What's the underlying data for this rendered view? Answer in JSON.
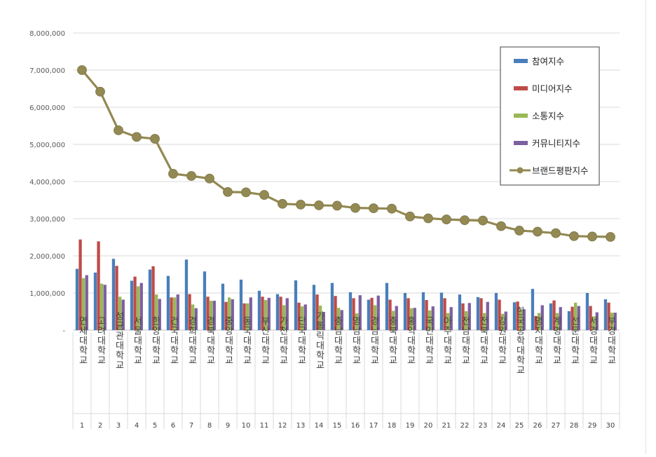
{
  "chart_data": {
    "type": "bar",
    "categories": [
      "연세대학교",
      "고려대학교",
      "성균관대학교",
      "서울대학교",
      "한양대학교",
      "건국대학교",
      "경희대학교",
      "경북대학교",
      "중앙대학교",
      "동국대학교",
      "부산대학교",
      "가천대학교",
      "단국대학교",
      "가톨릭대학교",
      "충남대학교",
      "영남대학교",
      "경남대학교",
      "충북대학교",
      "홍익대학교",
      "국민대학교",
      "아주대학교",
      "전남대학교",
      "전북대학교",
      "강원대학교",
      "한국공학대학교",
      "명지대학교",
      "계명대학교",
      "선문대학교",
      "서경대학교",
      "부경대학교"
    ],
    "ranks": [
      "1",
      "2",
      "3",
      "4",
      "5",
      "6",
      "7",
      "8",
      "9",
      "10",
      "11",
      "12",
      "13",
      "14",
      "15",
      "16",
      "17",
      "18",
      "19",
      "20",
      "21",
      "22",
      "23",
      "24",
      "25",
      "26",
      "27",
      "28",
      "29",
      "30"
    ],
    "ylim": [
      0,
      8000000
    ],
    "yticks": [
      {
        "value": 0,
        "label": "-"
      },
      {
        "value": 1000000,
        "label": "1,000,000"
      },
      {
        "value": 2000000,
        "label": "2,000,000"
      },
      {
        "value": 3000000,
        "label": "3,000,000"
      },
      {
        "value": 4000000,
        "label": "4,000,000"
      },
      {
        "value": 5000000,
        "label": "5,000,000"
      },
      {
        "value": 6000000,
        "label": "6,000,000"
      },
      {
        "value": 7000000,
        "label": "7,000,000"
      },
      {
        "value": 8000000,
        "label": "8,000,000"
      }
    ],
    "grid": true,
    "legend_position": "top-right",
    "series": [
      {
        "name": "참여지수",
        "type": "bar",
        "color": "#4a7ebb",
        "values": [
          1650000,
          1550000,
          1920000,
          1330000,
          1630000,
          1460000,
          1900000,
          1580000,
          1250000,
          1360000,
          1060000,
          970000,
          1340000,
          1220000,
          1270000,
          1020000,
          820000,
          1270000,
          1000000,
          1020000,
          1010000,
          960000,
          890000,
          1000000,
          750000,
          1110000,
          720000,
          510000,
          1000000,
          830000
        ]
      },
      {
        "name": "미디어지수",
        "type": "bar",
        "color": "#be4b48",
        "values": [
          2440000,
          2390000,
          1730000,
          1440000,
          1720000,
          880000,
          970000,
          900000,
          760000,
          720000,
          900000,
          900000,
          740000,
          960000,
          920000,
          860000,
          870000,
          820000,
          860000,
          810000,
          860000,
          720000,
          860000,
          820000,
          770000,
          380000,
          800000,
          630000,
          650000,
          740000
        ]
      },
      {
        "name": "소통지수",
        "type": "bar",
        "color": "#98b954",
        "values": [
          1400000,
          1250000,
          900000,
          1180000,
          960000,
          880000,
          690000,
          790000,
          880000,
          720000,
          810000,
          670000,
          640000,
          660000,
          600000,
          450000,
          670000,
          520000,
          590000,
          530000,
          460000,
          510000,
          460000,
          440000,
          550000,
          460000,
          460000,
          740000,
          370000,
          470000
        ]
      },
      {
        "name": "커뮤니티지수",
        "type": "bar",
        "color": "#7d60a0",
        "values": [
          1480000,
          1220000,
          820000,
          1270000,
          840000,
          960000,
          590000,
          790000,
          830000,
          880000,
          870000,
          860000,
          690000,
          490000,
          540000,
          940000,
          930000,
          650000,
          600000,
          640000,
          620000,
          730000,
          760000,
          500000,
          560000,
          670000,
          620000,
          650000,
          480000,
          470000
        ]
      },
      {
        "name": "브랜드평판지수",
        "type": "line",
        "color": "#938953",
        "values": [
          7000000,
          6420000,
          5380000,
          5200000,
          5150000,
          4210000,
          4150000,
          4080000,
          3720000,
          3710000,
          3640000,
          3400000,
          3380000,
          3360000,
          3350000,
          3290000,
          3280000,
          3270000,
          3060000,
          3010000,
          2980000,
          2960000,
          2950000,
          2800000,
          2680000,
          2650000,
          2610000,
          2530000,
          2520000,
          2510000
        ]
      }
    ]
  }
}
